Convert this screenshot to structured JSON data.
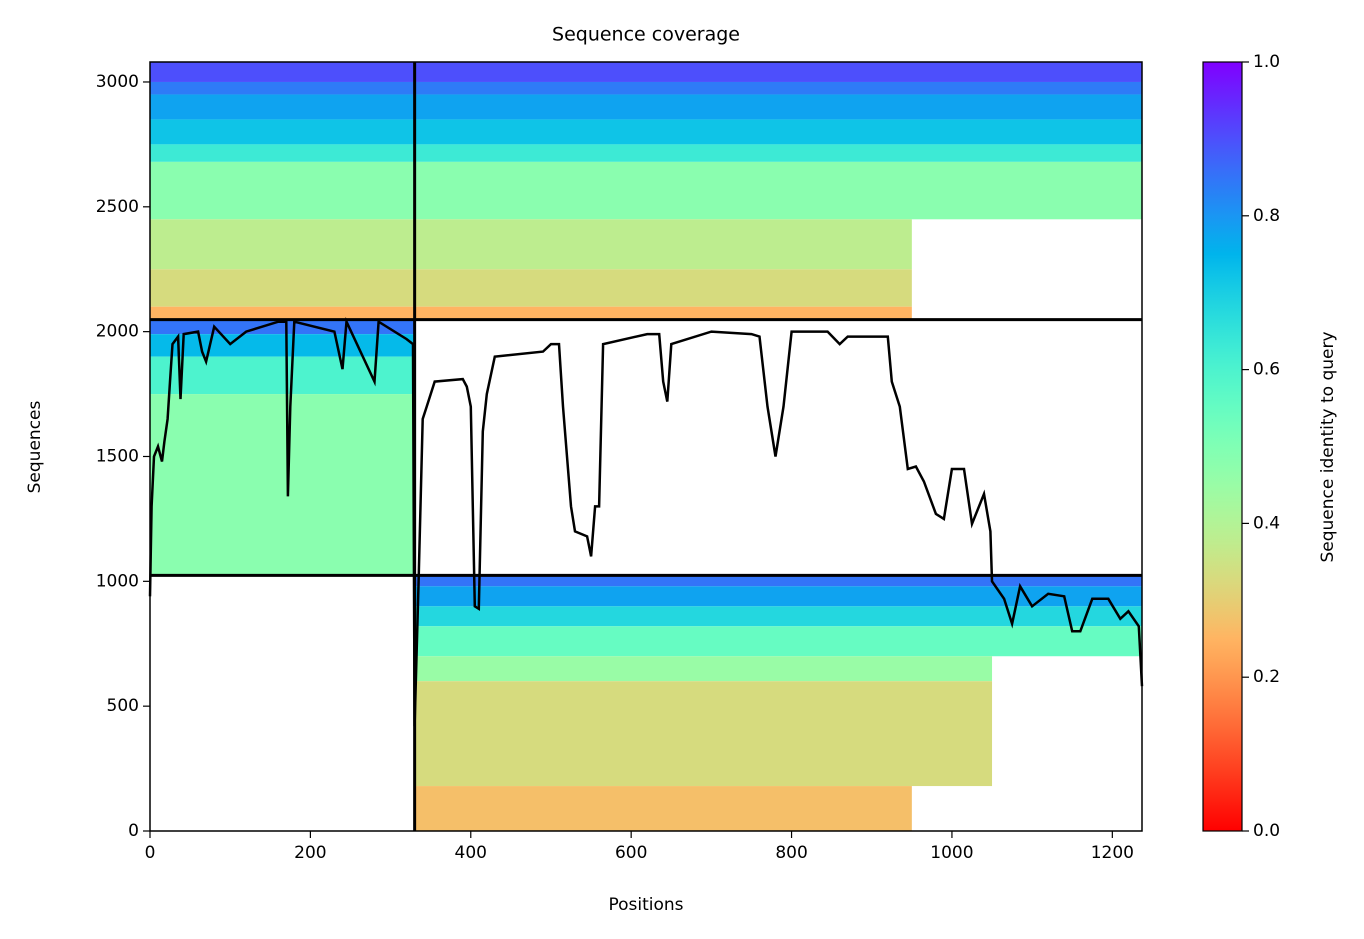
{
  "chart_data": {
    "type": "coverage",
    "title": "Sequence coverage",
    "xlabel": "Positions",
    "ylabel": "Sequences",
    "colorbar_label": "Sequence identity to query",
    "xlim": [
      0,
      1237
    ],
    "ylim": [
      0,
      3080
    ],
    "xticks": [
      0,
      200,
      400,
      600,
      800,
      1000,
      1200
    ],
    "yticks": [
      0,
      500,
      1000,
      1500,
      2000,
      2500,
      3000
    ],
    "clim": [
      0,
      1
    ],
    "cticks": [
      {
        "value": 0,
        "label": "0.0"
      },
      0.2,
      0.4,
      0.6,
      0.8,
      {
        "value": 1,
        "label": "1.0"
      }
    ],
    "colormap": "rainbow_r",
    "blocks": [
      {
        "x": [
          0,
          1237
        ],
        "y": [
          3000,
          3080
        ],
        "identity": 0.9
      },
      {
        "x": [
          0,
          1237
        ],
        "y": [
          2950,
          3000
        ],
        "identity": 0.84
      },
      {
        "x": [
          0,
          1237
        ],
        "y": [
          2850,
          2950
        ],
        "identity": 0.78
      },
      {
        "x": [
          0,
          1237
        ],
        "y": [
          2750,
          2850
        ],
        "identity": 0.72
      },
      {
        "x": [
          0,
          1237
        ],
        "y": [
          2680,
          2750
        ],
        "identity": 0.63
      },
      {
        "x": [
          0,
          1237
        ],
        "y": [
          2450,
          2680
        ],
        "identity": 0.48
      },
      {
        "x": [
          0,
          950
        ],
        "y": [
          2250,
          2450
        ],
        "identity": 0.38
      },
      {
        "x": [
          0,
          950
        ],
        "y": [
          2100,
          2250
        ],
        "identity": 0.33
      },
      {
        "x": [
          0,
          950
        ],
        "y": [
          2048,
          2100
        ],
        "identity": 0.25
      },
      {
        "x": [
          0,
          330
        ],
        "y": [
          1990,
          2048
        ],
        "identity": 0.85
      },
      {
        "x": [
          0,
          330
        ],
        "y": [
          1900,
          1990
        ],
        "identity": 0.74
      },
      {
        "x": [
          0,
          330
        ],
        "y": [
          1750,
          1900
        ],
        "identity": 0.6
      },
      {
        "x": [
          0,
          330
        ],
        "y": [
          1024,
          1750
        ],
        "identity": 0.48
      },
      {
        "x": [
          330,
          1237
        ],
        "y": [
          980,
          1024
        ],
        "identity": 0.85
      },
      {
        "x": [
          330,
          1237
        ],
        "y": [
          900,
          980
        ],
        "identity": 0.78
      },
      {
        "x": [
          330,
          1237
        ],
        "y": [
          820,
          900
        ],
        "identity": 0.68
      },
      {
        "x": [
          330,
          1237
        ],
        "y": [
          700,
          820
        ],
        "identity": 0.55
      },
      {
        "x": [
          330,
          1050
        ],
        "y": [
          600,
          700
        ],
        "identity": 0.45
      },
      {
        "x": [
          330,
          1050
        ],
        "y": [
          180,
          600
        ],
        "identity": 0.33
      },
      {
        "x": [
          330,
          950
        ],
        "y": [
          0,
          180
        ],
        "identity": 0.27
      }
    ],
    "boundaries": {
      "x": [
        330
      ],
      "y": [
        1024,
        2048
      ]
    },
    "coverage": {
      "color": "#000000",
      "x": [
        0,
        2,
        5,
        10,
        15,
        18,
        22,
        25,
        28,
        35,
        38,
        42,
        60,
        65,
        70,
        80,
        100,
        120,
        160,
        170,
        172,
        175,
        180,
        230,
        240,
        245,
        280,
        285,
        320,
        328,
        330,
        335,
        340,
        345,
        355,
        390,
        395,
        400,
        405,
        410,
        415,
        420,
        430,
        490,
        500,
        510,
        515,
        525,
        530,
        545,
        550,
        555,
        560,
        565,
        620,
        635,
        640,
        645,
        650,
        700,
        750,
        760,
        770,
        780,
        790,
        800,
        845,
        860,
        870,
        920,
        925,
        935,
        945,
        955,
        965,
        980,
        990,
        1000,
        1015,
        1025,
        1040,
        1048,
        1050,
        1065,
        1075,
        1085,
        1100,
        1120,
        1140,
        1150,
        1160,
        1175,
        1195,
        1210,
        1220,
        1233,
        1237
      ],
      "values": [
        940,
        1300,
        1500,
        1540,
        1480,
        1560,
        1650,
        1800,
        1950,
        1980,
        1730,
        1990,
        2000,
        1920,
        1880,
        2020,
        1950,
        2000,
        2040,
        2040,
        1340,
        1700,
        2040,
        2000,
        1850,
        2040,
        1800,
        2040,
        1970,
        1950,
        420,
        1000,
        1650,
        1700,
        1800,
        1810,
        1780,
        1700,
        900,
        890,
        1600,
        1750,
        1900,
        1920,
        1950,
        1950,
        1700,
        1300,
        1200,
        1180,
        1100,
        1300,
        1300,
        1950,
        1990,
        1990,
        1800,
        1720,
        1950,
        2000,
        1990,
        1980,
        1700,
        1500,
        1700,
        2000,
        2000,
        1950,
        1980,
        1980,
        1800,
        1700,
        1450,
        1460,
        1400,
        1270,
        1250,
        1450,
        1450,
        1230,
        1350,
        1200,
        1000,
        930,
        830,
        980,
        900,
        950,
        940,
        800,
        800,
        930,
        930,
        850,
        880,
        820,
        580
      ]
    }
  }
}
